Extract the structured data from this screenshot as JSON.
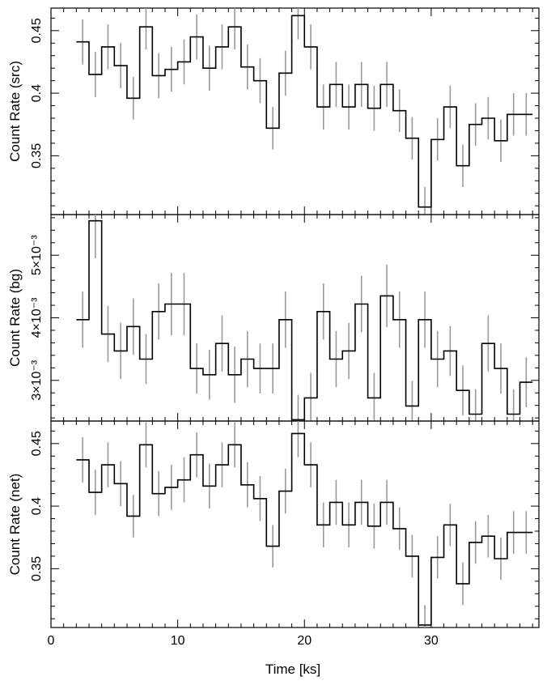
{
  "chart_data": [
    {
      "type": "line",
      "step": true,
      "ylabel": "Count Rate (src)",
      "ylim": [
        0.303,
        0.468
      ],
      "yticks_major": [
        0.35,
        0.4,
        0.45
      ],
      "yticks_minor_step": 0.01,
      "ytick_labels": [
        "0.35",
        "0.4",
        "0.45"
      ],
      "x": [
        2.5,
        3.5,
        4.5,
        5.5,
        6.5,
        7.5,
        8.5,
        9.5,
        10.5,
        11.5,
        12.5,
        13.5,
        14.5,
        15.5,
        16.5,
        17.5,
        18.5,
        19.5,
        20.5,
        21.5,
        22.5,
        23.5,
        24.5,
        25.5,
        26.5,
        27.5,
        28.5,
        29.5,
        30.5,
        31.5,
        32.5,
        33.5,
        34.5,
        35.5,
        36.5,
        37.5
      ],
      "values": [
        0.441,
        0.415,
        0.437,
        0.422,
        0.396,
        0.453,
        0.414,
        0.419,
        0.425,
        0.445,
        0.42,
        0.437,
        0.453,
        0.421,
        0.41,
        0.372,
        0.416,
        0.462,
        0.437,
        0.389,
        0.407,
        0.389,
        0.407,
        0.388,
        0.407,
        0.386,
        0.364,
        0.309,
        0.363,
        0.389,
        0.342,
        0.375,
        0.38,
        0.362,
        0.383,
        0.383
      ],
      "errors": [
        0.018,
        0.018,
        0.018,
        0.018,
        0.017,
        0.018,
        0.018,
        0.018,
        0.018,
        0.018,
        0.018,
        0.018,
        0.018,
        0.018,
        0.018,
        0.017,
        0.018,
        0.019,
        0.018,
        0.018,
        0.018,
        0.018,
        0.018,
        0.018,
        0.018,
        0.017,
        0.017,
        0.016,
        0.017,
        0.017,
        0.017,
        0.017,
        0.017,
        0.017,
        0.017,
        0.017
      ]
    },
    {
      "type": "line",
      "step": true,
      "ylabel": "Count Rate (bg)",
      "ylim": [
        0.00235,
        0.00565
      ],
      "yticks_major": [
        0.003,
        0.004,
        0.005
      ],
      "yticks_minor_step": 0.0002,
      "ytick_labels": [
        "3×10⁻³",
        "4×10⁻³",
        "5×10⁻³"
      ],
      "x": [
        2.5,
        3.5,
        4.5,
        5.5,
        6.5,
        7.5,
        8.5,
        9.5,
        10.5,
        11.5,
        12.5,
        13.5,
        14.5,
        15.5,
        16.5,
        17.5,
        18.5,
        19.5,
        20.5,
        21.5,
        22.5,
        23.5,
        24.5,
        25.5,
        26.5,
        27.5,
        28.5,
        29.5,
        30.5,
        31.5,
        32.5,
        33.5,
        34.5,
        35.5,
        36.5,
        37.5
      ],
      "values": [
        0.00397,
        0.00555,
        0.00374,
        0.00347,
        0.00386,
        0.00334,
        0.0041,
        0.00422,
        0.00422,
        0.00319,
        0.00309,
        0.00359,
        0.00309,
        0.00334,
        0.00319,
        0.00319,
        0.00397,
        0.00237,
        0.00272,
        0.0041,
        0.00334,
        0.00347,
        0.00422,
        0.00272,
        0.00435,
        0.00397,
        0.00259,
        0.00397,
        0.00334,
        0.00347,
        0.00284,
        0.00246,
        0.00359,
        0.00319,
        0.00246,
        0.00297
      ],
      "errors": [
        0.00045,
        0.0006,
        0.00045,
        0.00045,
        0.00045,
        0.0004,
        0.00045,
        0.0005,
        0.0005,
        0.0004,
        0.0004,
        0.00045,
        0.00045,
        0.00045,
        0.0004,
        0.0004,
        0.00045,
        0.0004,
        0.0004,
        0.00045,
        0.00045,
        0.00045,
        0.00045,
        0.0004,
        0.0005,
        0.00045,
        0.0004,
        0.00045,
        0.00045,
        0.0004,
        0.0004,
        0.0004,
        0.00045,
        0.0004,
        0.0004,
        0.0004
      ]
    },
    {
      "type": "line",
      "step": true,
      "ylabel": "Count Rate (net)",
      "xlabel": "Time [ks]",
      "ylim": [
        0.303,
        0.468
      ],
      "xlim": [
        0,
        38.5
      ],
      "xticks_major": [
        0,
        10,
        20,
        30
      ],
      "xticks_minor_step": 1,
      "xtick_labels": [
        "0",
        "10",
        "20",
        "30"
      ],
      "yticks_major": [
        0.35,
        0.4,
        0.45
      ],
      "yticks_minor_step": 0.01,
      "ytick_labels": [
        "0.35",
        "0.4",
        "0.45"
      ],
      "x": [
        2.5,
        3.5,
        4.5,
        5.5,
        6.5,
        7.5,
        8.5,
        9.5,
        10.5,
        11.5,
        12.5,
        13.5,
        14.5,
        15.5,
        16.5,
        17.5,
        18.5,
        19.5,
        20.5,
        21.5,
        22.5,
        23.5,
        24.5,
        25.5,
        26.5,
        27.5,
        28.5,
        29.5,
        30.5,
        31.5,
        32.5,
        33.5,
        34.5,
        35.5,
        36.5,
        37.5
      ],
      "values": [
        0.437,
        0.411,
        0.433,
        0.418,
        0.392,
        0.449,
        0.41,
        0.415,
        0.421,
        0.441,
        0.416,
        0.433,
        0.449,
        0.417,
        0.406,
        0.368,
        0.412,
        0.458,
        0.433,
        0.385,
        0.403,
        0.385,
        0.403,
        0.384,
        0.403,
        0.382,
        0.36,
        0.305,
        0.359,
        0.385,
        0.338,
        0.371,
        0.376,
        0.358,
        0.379,
        0.379
      ],
      "errors": [
        0.018,
        0.018,
        0.018,
        0.018,
        0.017,
        0.018,
        0.018,
        0.018,
        0.018,
        0.018,
        0.018,
        0.018,
        0.018,
        0.018,
        0.018,
        0.017,
        0.018,
        0.019,
        0.018,
        0.018,
        0.018,
        0.018,
        0.018,
        0.018,
        0.018,
        0.017,
        0.017,
        0.016,
        0.017,
        0.017,
        0.017,
        0.017,
        0.017,
        0.017,
        0.017,
        0.017
      ]
    }
  ],
  "style": {
    "line_color": "#000000",
    "error_color": "#9a9a9a",
    "axis_color": "#000000"
  }
}
